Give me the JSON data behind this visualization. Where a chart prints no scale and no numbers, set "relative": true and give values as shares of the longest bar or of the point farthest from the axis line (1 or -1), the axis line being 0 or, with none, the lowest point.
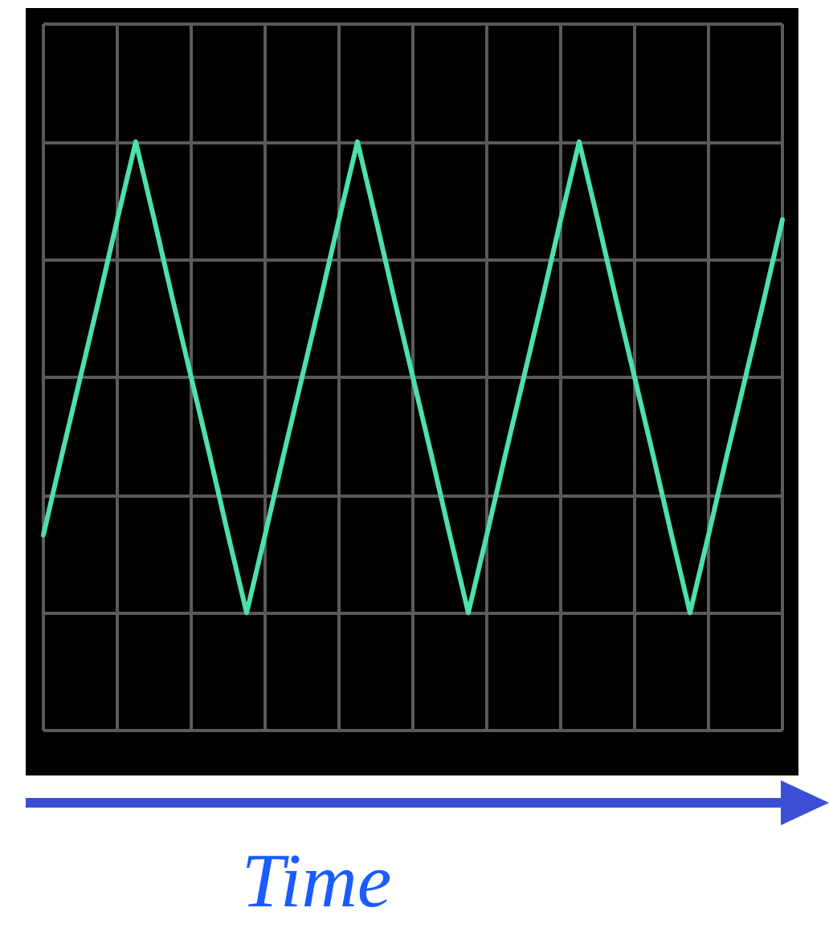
{
  "chart_data": {
    "type": "line",
    "xlabel": "Time",
    "relative": true,
    "grid": true,
    "marker": "none",
    "line_style": "solid",
    "categories": [
      null,
      null,
      null,
      null,
      null,
      null,
      null,
      null,
      null,
      null,
      null,
      null,
      null,
      null,
      null,
      null,
      null,
      null,
      null,
      null,
      null,
      null,
      null,
      null,
      null,
      null,
      null,
      null,
      null,
      null,
      null,
      null,
      null,
      null,
      null,
      null,
      null,
      null,
      null,
      null,
      null
    ],
    "series": [
      {
        "color": "#4de0a8",
        "values": [
          -0.67,
          -0.33,
          0,
          0.33,
          0.67,
          1,
          0.67,
          0.33,
          0,
          -0.33,
          -0.67,
          -1,
          -0.67,
          -0.33,
          0,
          0.33,
          0.67,
          1,
          0.67,
          0.33,
          0,
          -0.33,
          -0.67,
          -1,
          -0.67,
          -0.33,
          0,
          0.33,
          0.67,
          1,
          0.67,
          0.33,
          0,
          -0.33,
          -0.67,
          -1,
          -0.67,
          -0.33,
          0,
          0.33,
          0.67
        ]
      }
    ]
  }
}
